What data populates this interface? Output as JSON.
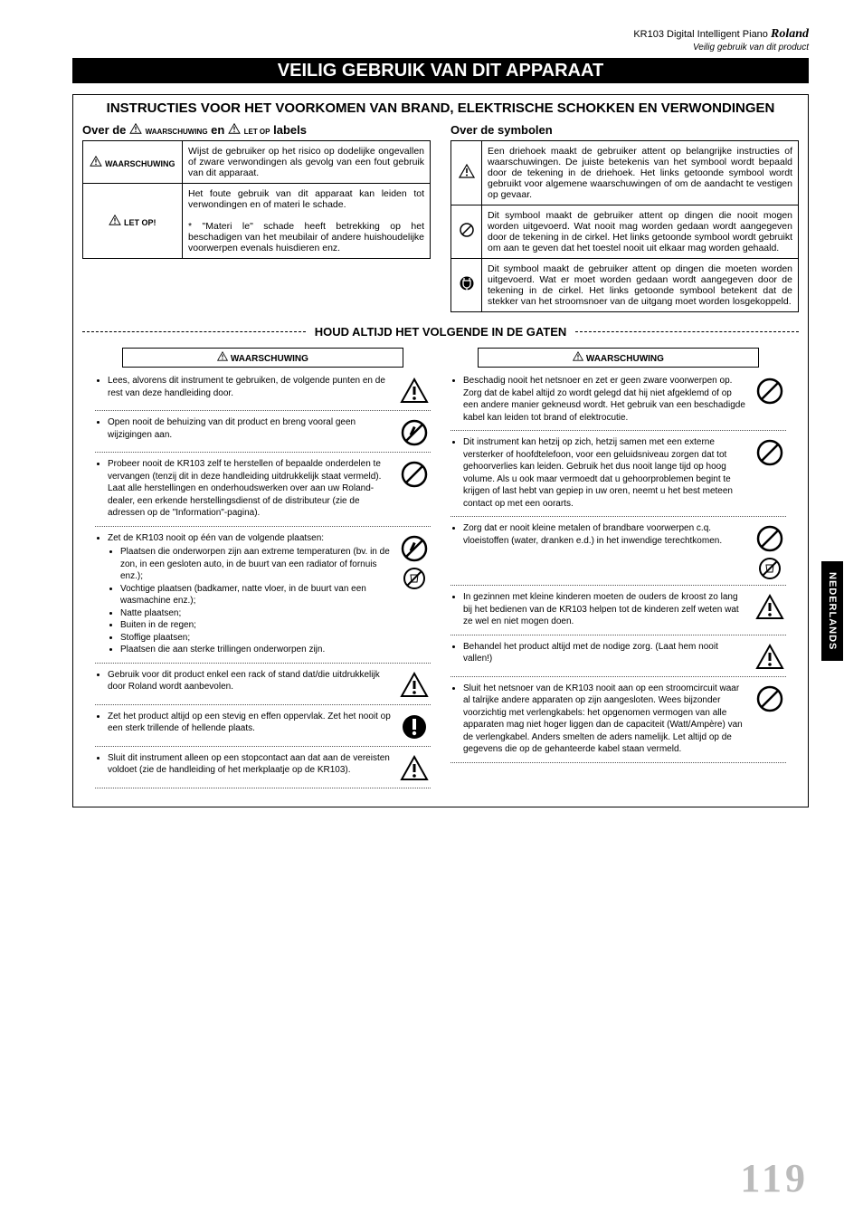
{
  "header": {
    "product": "KR103 Digital Intelligent Piano",
    "brand": "Roland",
    "subtitle": "Veilig gebruik van dit product"
  },
  "title_bar": "VEILIG GEBRUIK VAN DIT APPARAAT",
  "instr_title": "INSTRUCTIES VOOR HET VOORKOMEN VAN BRAND, ELEKTRISCHE SCHOKKEN EN VERWONDINGEN",
  "labels_section": {
    "title_pre": "Over de ",
    "waarschuwing": "WAARSCHUWING",
    "en": " en ",
    "letop": "LET OP",
    "title_post": "  labels",
    "rows": [
      {
        "label": "WAARSCHUWING",
        "text": "Wijst de gebruiker op het risico op dodelijke ongevallen of zware verwondingen als gevolg van een fout gebruik van dit apparaat."
      },
      {
        "label": "LET OP!",
        "text_a": "Het foute gebruik van dit apparaat kan leiden tot verwondingen en of materi le schade.",
        "text_b": "* \"Materi le\" schade heeft betrekking op het beschadigen van het meubilair of andere huishoudelijke voorwerpen evenals huisdieren enz."
      }
    ]
  },
  "symbols_section": {
    "title": "Over de symbolen",
    "rows": [
      {
        "sym": "triangle",
        "text": "Een driehoek maakt de gebruiker attent op belangrijke instructies of waarschuwingen. De juiste betekenis van het symbool wordt bepaald door de tekening in de driehoek.  Het links getoonde symbool wordt gebruikt voor algemene waarschuwingen of om de aandacht te vestigen op gevaar."
      },
      {
        "sym": "prohibit",
        "text": "Dit symbool maakt de gebruiker attent op dingen die nooit mogen worden uitgevoerd.  Wat nooit mag worden gedaan wordt aangegeven door de tekening in de cirkel.  Het links getoonde symbool  wordt gebruikt om aan te geven dat het toestel nooit uit elkaar mag worden gehaald."
      },
      {
        "sym": "must",
        "text": "Dit symbool maakt de gebruiker attent op dingen die moeten worden uitgevoerd.  Wat er moet worden gedaan wordt aangegeven door de tekening in de cirkel.  Het links getoonde symbool  betekent dat de stekker van het stroomsnoer van de uitgang moet worden losgekoppeld."
      }
    ]
  },
  "divider": "HOUD ALTIJD HET VOLGENDE IN DE GATEN",
  "warn_head": "WAARSCHUWING",
  "left_items": [
    {
      "icon": "warn",
      "bullets": [
        "Lees, alvorens dit instrument te gebruiken, de volgende punten en de rest van deze handleiding door."
      ]
    },
    {
      "icon": "nodis",
      "bullets": [
        "Open nooit de behuizing van dit product en breng vooral geen wijzigingen aan."
      ]
    },
    {
      "icon": "prohibit",
      "bullets": [
        "Probeer nooit de KR103 zelf te herstellen of bepaalde onderdelen te vervangen (tenzij dit in deze handleiding uitdrukkelijk staat vermeld). Laat alle herstellingen en onderhoudswerken over aan uw Roland-dealer, een erkende herstellingsdienst of de distributeur (zie de adressen op de \"Information\"-pagina)."
      ]
    },
    {
      "icon": "nodis2",
      "bullets": [
        "Zet de KR103 nooit op één van de volgende plaatsen:",
        "__sub__Plaatsen die onderworpen zijn aan extreme temperaturen (bv. in de zon, in een gesloten auto, in de buurt van een radiator of fornuis enz.);",
        "__sub__Vochtige plaatsen (badkamer, natte vloer, in de buurt van een wasmachine enz.);",
        "__sub__Natte plaatsen;",
        "__sub__Buiten in de regen;",
        "__sub__Stoffige plaatsen;",
        "__sub__Plaatsen die aan sterke trillingen onderworpen zijn."
      ]
    },
    {
      "icon": "warn",
      "bullets": [
        "Gebruik voor dit product enkel een rack of stand dat/die uitdrukkelijk door Roland wordt aanbevolen."
      ]
    },
    {
      "icon": "mustdo",
      "bullets": [
        "Zet het product altijd op een stevig en effen oppervlak. Zet het nooit op een sterk trillende of hellende plaats."
      ]
    },
    {
      "icon": "warn",
      "nodiv": true,
      "bullets": [
        "Sluit dit instrument alleen op een stopcontact aan dat aan de vereisten voldoet (zie de handleiding of het merkplaatje op de KR103)."
      ]
    }
  ],
  "right_items": [
    {
      "icon": "prohibit",
      "bullets": [
        "Beschadig nooit het netsnoer en zet er geen zware voorwerpen op. Zorg dat de kabel altijd zo wordt gelegd dat hij niet afgeklemd of op een andere manier gekneusd wordt. Het gebruik van een beschadigde kabel kan leiden tot brand of elektrocutie."
      ]
    },
    {
      "icon": "prohibit",
      "bullets": [
        "Dit instrument kan hetzij op zich, hetzij samen met een externe versterker of hoofdtelefoon, voor een geluidsniveau zorgen dat tot gehoorverlies kan leiden. Gebruik het dus nooit lange tijd op hoog volume. Als u ook maar vermoedt dat u gehoorproblemen begint te krijgen of last hebt van gepiep in uw oren, neemt u het best meteen contact op met een oorarts."
      ]
    },
    {
      "icon": "prohibit2",
      "bullets": [
        "Zorg dat er nooit kleine metalen of brandbare voorwerpen c.q. vloeistoffen (water, dranken e.d.) in het inwendige terechtkomen."
      ]
    },
    {
      "icon": "warn",
      "bullets": [
        "In gezinnen met kleine kinderen moeten de ouders de kroost zo lang bij het bedienen van de KR103 helpen tot de kinderen zelf weten wat ze wel en niet mogen doen."
      ]
    },
    {
      "icon": "warn",
      "bullets": [
        "Behandel het product altijd met de nodige zorg. (Laat hem nooit vallen!)"
      ]
    },
    {
      "icon": "prohibit",
      "bullets": [
        "Sluit het netsnoer van de KR103 nooit aan op een stroomcircuit waar al talrijke andere apparaten op zijn aangesloten. Wees bijzonder voorzichtig met verlengkabels: het opgenomen vermogen van alle apparaten mag niet hoger liggen dan de capaciteit (Watt/Ampère) van de verlengkabel. Anders smelten de aders namelijk. Let altijd op de gegevens die op de gehanteerde kabel staan vermeld."
      ]
    }
  ],
  "page_number": "119",
  "side_tab": "NEDERLANDS",
  "colors": {
    "bg": "#ffffff",
    "text": "#000000",
    "pagenum": "#bbbbbb"
  }
}
